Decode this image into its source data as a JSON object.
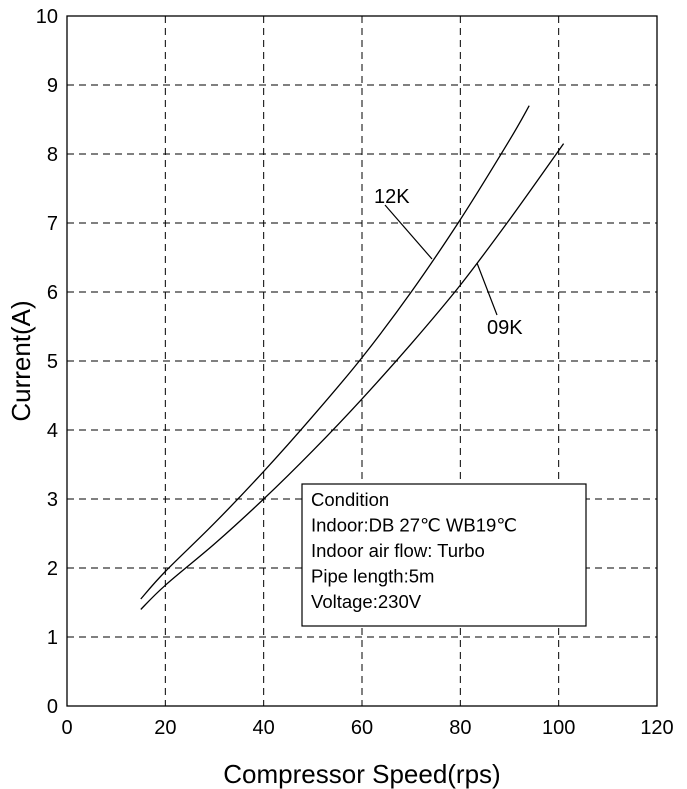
{
  "chart_data": {
    "type": "line",
    "xlabel": "Compressor Speed(rps)",
    "ylabel": "Current(A)",
    "xlim": [
      0,
      120
    ],
    "ylim": [
      0,
      10
    ],
    "xticks": [
      0,
      20,
      40,
      60,
      80,
      100,
      120
    ],
    "yticks": [
      0,
      1,
      2,
      3,
      4,
      5,
      6,
      7,
      8,
      9,
      10
    ],
    "grid": true,
    "series": [
      {
        "name": "12K",
        "x": [
          15,
          20,
          30,
          40,
          50,
          60,
          70,
          80,
          90,
          94
        ],
        "y": [
          1.55,
          1.95,
          2.65,
          3.4,
          4.2,
          5.05,
          6.0,
          7.05,
          8.2,
          8.7
        ]
      },
      {
        "name": "09K",
        "x": [
          15,
          20,
          30,
          40,
          50,
          60,
          70,
          80,
          90,
          101
        ],
        "y": [
          1.4,
          1.75,
          2.35,
          3.0,
          3.7,
          4.45,
          5.25,
          6.1,
          7.05,
          8.15
        ]
      }
    ],
    "annotations": {
      "condition_box": [
        "Condition",
        "Indoor:DB 27℃ WB19℃",
        "Indoor air flow: Turbo",
        "Pipe length:5m",
        "Voltage:230V"
      ]
    }
  }
}
